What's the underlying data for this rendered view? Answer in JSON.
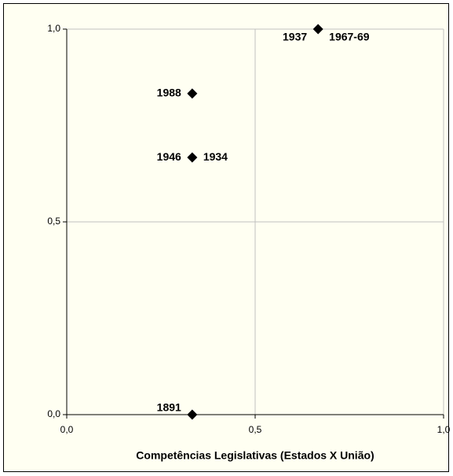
{
  "chart_data": {
    "type": "scatter",
    "xlabel": "Competências Legislativas (Estados X União)",
    "x": [
      0.333,
      0.333,
      0.333,
      0.667
    ],
    "y": [
      0,
      0.667,
      0.833,
      1
    ],
    "point_labels": [
      [
        "1891"
      ],
      [
        "1946",
        "1934"
      ],
      [
        "1988"
      ],
      [
        "1937",
        "1967-69"
      ]
    ],
    "color": "#000000",
    "xlim": [
      0,
      1
    ],
    "ylim": [
      0,
      1
    ],
    "xticks": [
      {
        "value": 0,
        "label": "0,0"
      },
      {
        "value": 0.5,
        "label": "0,5"
      },
      {
        "value": 1,
        "label": "1,0"
      }
    ],
    "yticks": [
      {
        "value": 0,
        "label": "0,0"
      },
      {
        "value": 0.5,
        "label": "0,5"
      },
      {
        "value": 1,
        "label": "1,0"
      }
    ],
    "grid": true
  }
}
